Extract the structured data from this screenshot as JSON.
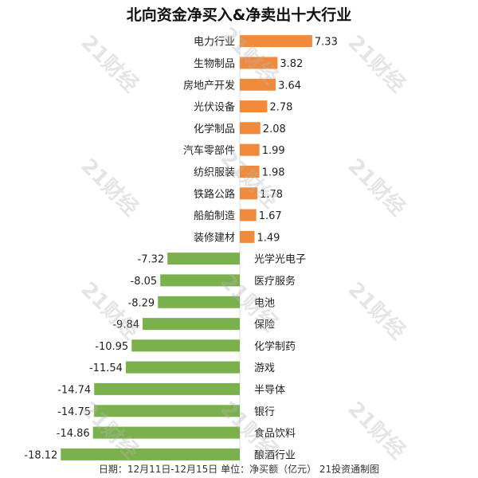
{
  "title": "北向资金净买入&净卖出十大行业",
  "footer": "日期：12月11日-12月15日 单位：净买额（亿元） 21投资通制图",
  "watermark": "21财经",
  "colors": {
    "positive": "#f08a3c",
    "negative": "#7bb14c"
  },
  "chart_data": {
    "type": "bar",
    "orientation": "horizontal",
    "title": "北向资金净买入&净卖出十大行业",
    "categories": [
      "电力行业",
      "生物制品",
      "房地产开发",
      "光伏设备",
      "化学制品",
      "汽车零部件",
      "纺织服装",
      "铁路公路",
      "船舶制造",
      "装修建材",
      "光学光电子",
      "医疗服务",
      "电池",
      "保险",
      "化学制药",
      "游戏",
      "半导体",
      "银行",
      "食品饮料",
      "酿酒行业"
    ],
    "values": [
      7.33,
      3.82,
      3.64,
      2.78,
      2.08,
      1.99,
      1.98,
      1.78,
      1.67,
      1.49,
      -7.32,
      -8.05,
      -8.29,
      -9.84,
      -10.95,
      -11.54,
      -14.74,
      -14.75,
      -14.86,
      -18.12
    ],
    "value_labels": [
      "7.33",
      "3.82",
      "3.64",
      "2.78",
      "2.08",
      "1.99",
      "1.98",
      "1.78",
      "1.67",
      "1.49",
      "-7.32",
      "-8.05",
      "-8.29",
      "-9.84",
      "-10.95",
      "-11.54",
      "-14.74",
      "-14.75",
      "-14.86",
      "-18.12"
    ],
    "xlim": [
      -18.12,
      7.33
    ],
    "grid": false,
    "legend": "none"
  }
}
